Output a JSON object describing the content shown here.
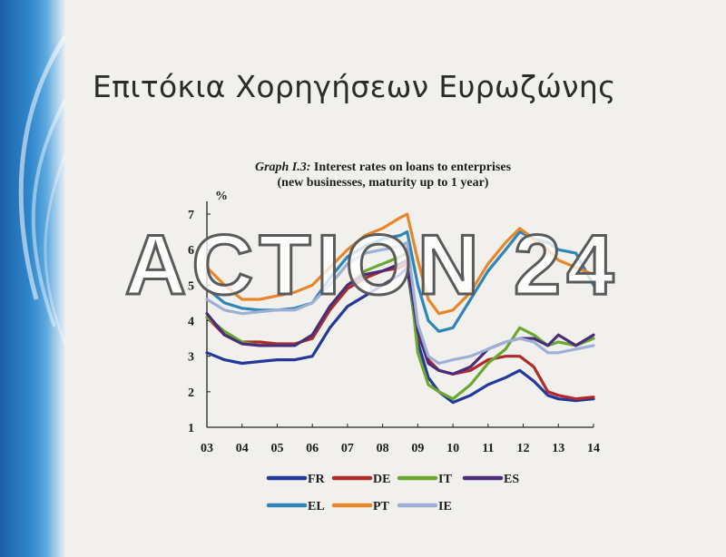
{
  "slide": {
    "title": "Επιτόκια Χορηγήσεων Ευρωζώνης"
  },
  "watermark": "ACTION 24",
  "chart_heading": {
    "tag": "Graph I.3:",
    "line1": "Interest rates on loans to enterprises",
    "line2": "(new businesses, maturity up to 1 year)"
  },
  "chart_data": {
    "type": "line",
    "ylabel": "%",
    "ylim": [
      1,
      7
    ],
    "yticks": [
      1,
      2,
      3,
      4,
      5,
      6,
      7
    ],
    "xlim": [
      2003,
      2014
    ],
    "xticks": [
      "03",
      "04",
      "05",
      "06",
      "07",
      "08",
      "09",
      "10",
      "11",
      "12",
      "13",
      "14"
    ],
    "x": [
      2003.0,
      2003.5,
      2004.0,
      2004.5,
      2005.0,
      2005.5,
      2006.0,
      2006.5,
      2007.0,
      2007.5,
      2008.0,
      2008.5,
      2008.7,
      2009.0,
      2009.3,
      2009.6,
      2010.0,
      2010.5,
      2011.0,
      2011.5,
      2011.9,
      2012.3,
      2012.7,
      2013.0,
      2013.5,
      2014.0
    ],
    "legend_position": "bottom",
    "series": [
      {
        "name": "FR",
        "color": "#24389a",
        "values": [
          3.1,
          2.9,
          2.8,
          2.85,
          2.9,
          2.9,
          3.0,
          3.8,
          4.4,
          4.7,
          5.0,
          5.3,
          5.5,
          3.4,
          2.4,
          2.0,
          1.7,
          1.9,
          2.2,
          2.4,
          2.6,
          2.3,
          1.9,
          1.8,
          1.75,
          1.8
        ]
      },
      {
        "name": "DE",
        "color": "#b02a2a",
        "values": [
          4.1,
          3.6,
          3.4,
          3.4,
          3.35,
          3.35,
          3.5,
          4.3,
          4.9,
          5.2,
          5.4,
          5.5,
          5.6,
          3.6,
          2.9,
          2.6,
          2.5,
          2.6,
          2.9,
          3.0,
          3.0,
          2.7,
          2.0,
          1.9,
          1.8,
          1.85
        ]
      },
      {
        "name": "IT",
        "color": "#6aa82e",
        "values": [
          4.1,
          3.7,
          3.4,
          3.3,
          3.3,
          3.3,
          3.6,
          4.4,
          5.0,
          5.4,
          5.6,
          5.8,
          5.9,
          3.1,
          2.2,
          2.0,
          1.8,
          2.2,
          2.8,
          3.2,
          3.8,
          3.6,
          3.3,
          3.4,
          3.3,
          3.5
        ]
      },
      {
        "name": "ES",
        "color": "#4a2c7a",
        "values": [
          4.2,
          3.6,
          3.35,
          3.3,
          3.3,
          3.3,
          3.6,
          4.4,
          5.0,
          5.3,
          5.4,
          5.6,
          5.7,
          3.7,
          2.8,
          2.6,
          2.5,
          2.7,
          3.2,
          3.4,
          3.5,
          3.5,
          3.3,
          3.6,
          3.3,
          3.6
        ]
      },
      {
        "name": "EL",
        "color": "#2e86b8",
        "values": [
          4.9,
          4.5,
          4.35,
          4.3,
          4.3,
          4.35,
          4.5,
          5.2,
          5.8,
          6.1,
          6.3,
          6.4,
          6.5,
          5.0,
          4.0,
          3.7,
          3.8,
          4.6,
          5.4,
          6.0,
          6.5,
          6.3,
          6.2,
          6.0,
          5.9,
          5.0
        ]
      },
      {
        "name": "PT",
        "color": "#e8862a",
        "values": [
          5.5,
          5.0,
          4.6,
          4.6,
          4.7,
          4.8,
          5.0,
          5.5,
          6.0,
          6.4,
          6.6,
          6.9,
          7.0,
          5.7,
          4.6,
          4.2,
          4.3,
          4.8,
          5.6,
          6.2,
          6.6,
          6.3,
          6.0,
          5.7,
          5.5,
          5.3
        ]
      },
      {
        "name": "IE",
        "color": "#9fb0d6",
        "values": [
          4.6,
          4.3,
          4.2,
          4.25,
          4.3,
          4.3,
          4.5,
          5.0,
          5.6,
          5.9,
          6.0,
          6.1,
          6.2,
          3.9,
          3.0,
          2.8,
          2.9,
          3.0,
          3.2,
          3.4,
          3.5,
          3.4,
          3.1,
          3.1,
          3.2,
          3.3
        ]
      }
    ]
  }
}
